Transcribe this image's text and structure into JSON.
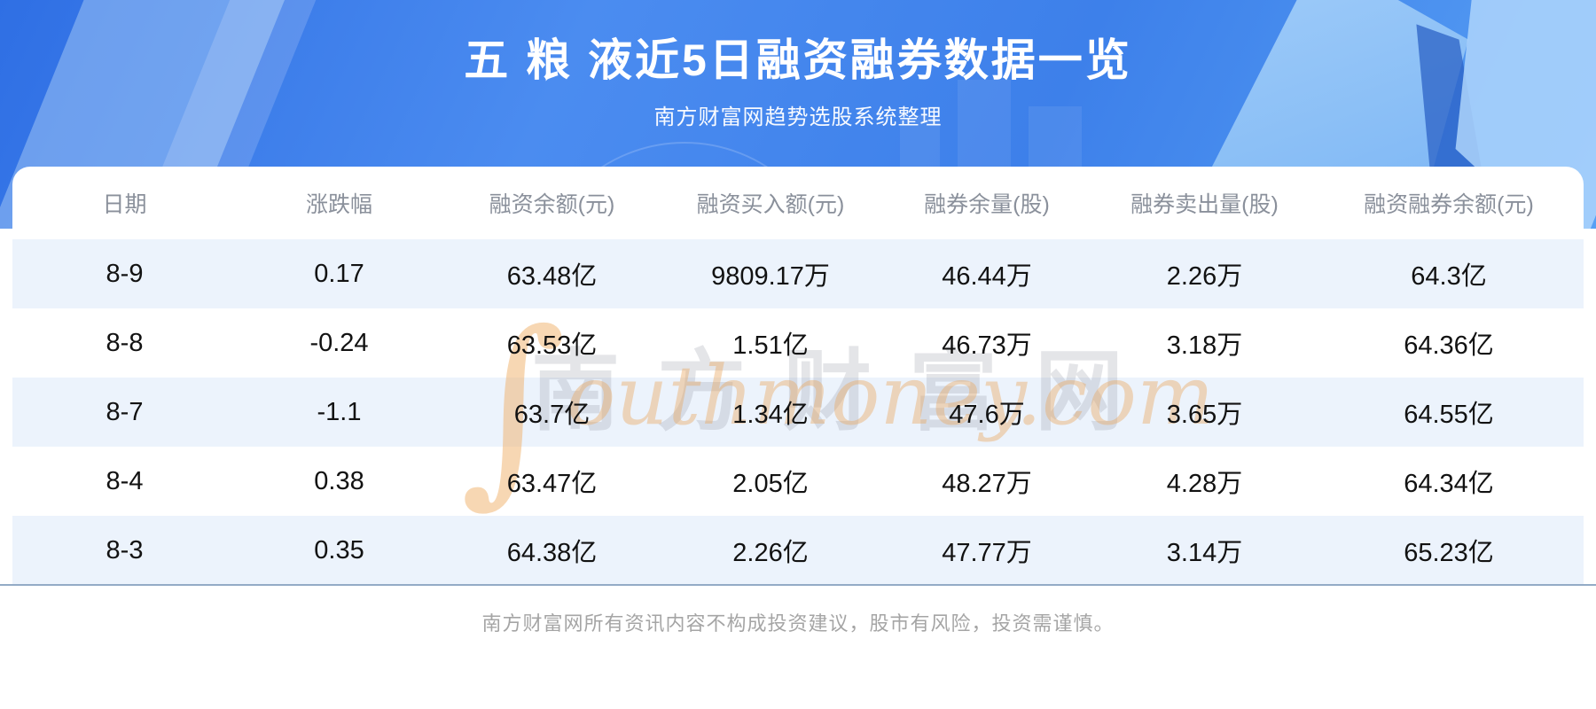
{
  "banner": {
    "title": "五 粮 液近5日融资融券数据一览",
    "subtitle": "南方财富网趋势选股系统整理"
  },
  "chart_data": {
    "type": "table",
    "title": "五 粮 液近5日融资融券数据一览",
    "columns": [
      "日期",
      "涨跌幅",
      "融资余额(元)",
      "融资买入额(元)",
      "融券余量(股)",
      "融券卖出量(股)",
      "融资融券余额(元)"
    ],
    "rows": [
      [
        "8-9",
        "0.17",
        "63.48亿",
        "9809.17万",
        "46.44万",
        "2.26万",
        "64.3亿"
      ],
      [
        "8-8",
        "-0.24",
        "63.53亿",
        "1.51亿",
        "46.73万",
        "3.18万",
        "64.36亿"
      ],
      [
        "8-7",
        "-1.1",
        "63.7亿",
        "1.34亿",
        "47.6万",
        "3.65万",
        "64.55亿"
      ],
      [
        "8-4",
        "0.38",
        "63.47亿",
        "2.05亿",
        "48.27万",
        "4.28万",
        "64.34亿"
      ],
      [
        "8-3",
        "0.35",
        "64.38亿",
        "2.26亿",
        "47.77万",
        "3.14万",
        "65.23亿"
      ]
    ]
  },
  "watermark": {
    "swoosh": "∫",
    "cn": "南方财富网",
    "en": "outhmoney.com"
  },
  "footer": {
    "disclaimer": "南方财富网所有资讯内容不构成投资建议，股市有风险，投资需谨慎。"
  },
  "colors": {
    "banner_blue": "#3f82ea",
    "row_band": "#ecf3fc",
    "divider": "#93abc6",
    "header_text": "#8a909b"
  }
}
